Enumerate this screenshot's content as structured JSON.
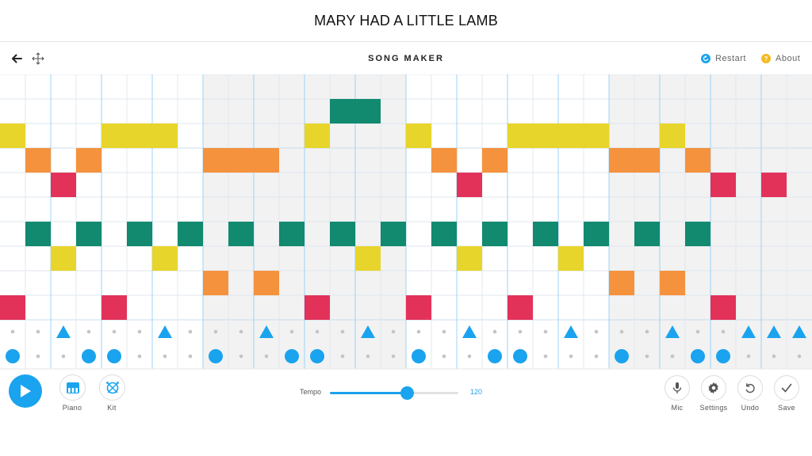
{
  "caption": "MARY HAD A LITTLE LAMB",
  "header": {
    "title": "SONG MAKER",
    "restart_label": "Restart",
    "about_label": "About",
    "about_glyph": "?",
    "restart_color": "#1aa3ee",
    "about_color": "#f5b921"
  },
  "grid": {
    "columns": 32,
    "melody_rows": 10,
    "rhythm_rows": 2,
    "bar_length": 8,
    "shaded_bars": [
      1,
      3
    ],
    "row_colors": [
      "#e3325a",
      "#f5923e",
      "#e8d52b",
      "#118a6f",
      "#1aa3ee",
      "#e3325a",
      "#f5923e",
      "#e8d52b",
      "#118a6f",
      "#1aa3ee"
    ],
    "notes": [
      {
        "col": 0,
        "row": 7
      },
      {
        "col": 1,
        "row": 6
      },
      {
        "col": 2,
        "row": 5
      },
      {
        "col": 3,
        "row": 6
      },
      {
        "col": 4,
        "row": 7
      },
      {
        "col": 5,
        "row": 7
      },
      {
        "col": 6,
        "row": 7
      },
      {
        "col": 8,
        "row": 6
      },
      {
        "col": 9,
        "row": 6
      },
      {
        "col": 10,
        "row": 6
      },
      {
        "col": 12,
        "row": 7
      },
      {
        "col": 13,
        "row": 8
      },
      {
        "col": 14,
        "row": 8
      },
      {
        "col": 16,
        "row": 7
      },
      {
        "col": 17,
        "row": 6
      },
      {
        "col": 18,
        "row": 5
      },
      {
        "col": 19,
        "row": 6
      },
      {
        "col": 20,
        "row": 7
      },
      {
        "col": 21,
        "row": 7
      },
      {
        "col": 22,
        "row": 7
      },
      {
        "col": 23,
        "row": 7
      },
      {
        "col": 24,
        "row": 6
      },
      {
        "col": 25,
        "row": 6
      },
      {
        "col": 26,
        "row": 7
      },
      {
        "col": 27,
        "row": 6
      },
      {
        "col": 28,
        "row": 5
      },
      {
        "col": 30,
        "row": 5
      },
      {
        "col": 1,
        "row": 3
      },
      {
        "col": 3,
        "row": 3
      },
      {
        "col": 5,
        "row": 3
      },
      {
        "col": 7,
        "row": 3
      },
      {
        "col": 9,
        "row": 3
      },
      {
        "col": 11,
        "row": 3
      },
      {
        "col": 13,
        "row": 3
      },
      {
        "col": 15,
        "row": 3
      },
      {
        "col": 17,
        "row": 3
      },
      {
        "col": 19,
        "row": 3
      },
      {
        "col": 21,
        "row": 3
      },
      {
        "col": 23,
        "row": 3
      },
      {
        "col": 25,
        "row": 3
      },
      {
        "col": 27,
        "row": 3
      },
      {
        "col": 2,
        "row": 2
      },
      {
        "col": 6,
        "row": 2
      },
      {
        "col": 14,
        "row": 2
      },
      {
        "col": 18,
        "row": 2
      },
      {
        "col": 22,
        "row": 2
      },
      {
        "col": 8,
        "row": 1
      },
      {
        "col": 10,
        "row": 1
      },
      {
        "col": 24,
        "row": 1
      },
      {
        "col": 26,
        "row": 1
      },
      {
        "col": 0,
        "row": 0
      },
      {
        "col": 4,
        "row": 0
      },
      {
        "col": 12,
        "row": 0
      },
      {
        "col": 16,
        "row": 0
      },
      {
        "col": 20,
        "row": 0
      },
      {
        "col": 28,
        "row": 0
      }
    ],
    "triangles": [
      2,
      6,
      10,
      14,
      18,
      22,
      26,
      29,
      30,
      31
    ],
    "circles": [
      0,
      3,
      4,
      8,
      11,
      12,
      16,
      19,
      20,
      24,
      27,
      28
    ],
    "rhythm_color": "#1aa3ee"
  },
  "controls": {
    "piano_label": "Piano",
    "kit_label": "Kit",
    "tempo_label": "Tempo",
    "tempo_value": "120",
    "tempo_fraction": 0.6,
    "mic_label": "Mic",
    "settings_label": "Settings",
    "undo_label": "Undo",
    "save_label": "Save",
    "accent_color": "#1aa3ee"
  }
}
